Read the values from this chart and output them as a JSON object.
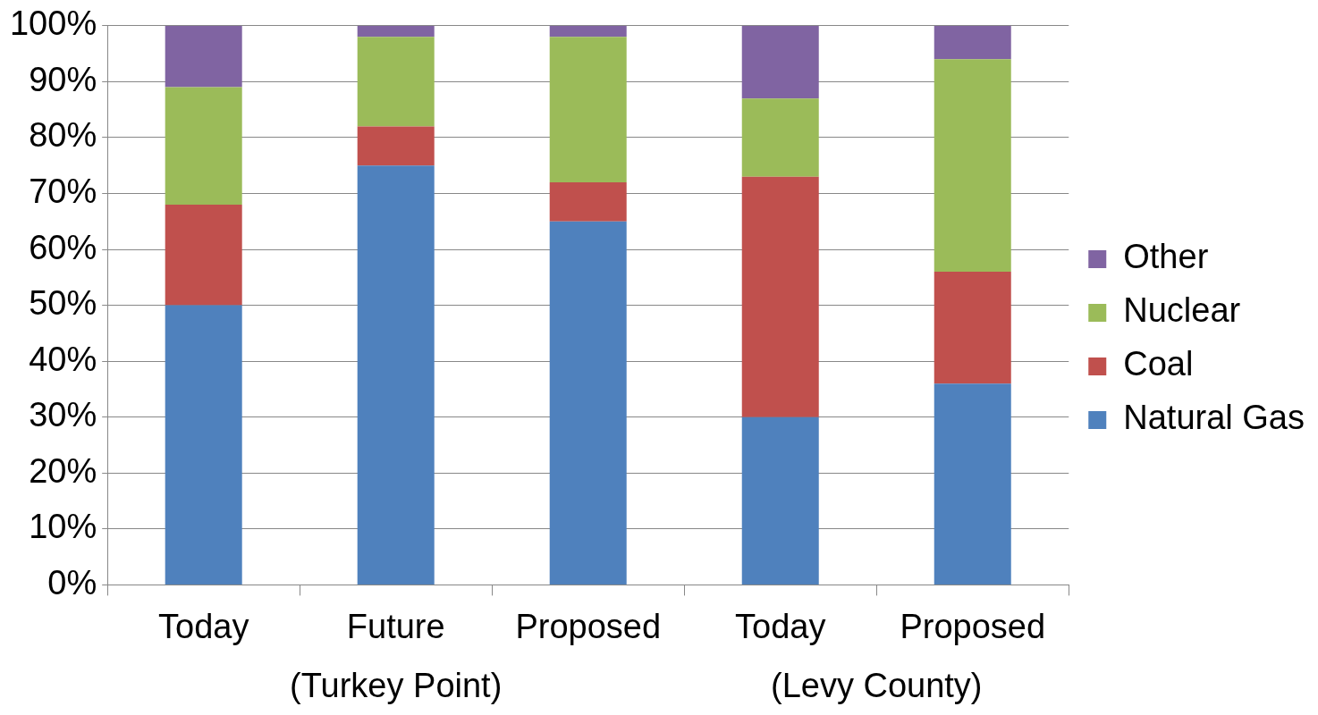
{
  "chart_data": {
    "type": "bar",
    "stacked": true,
    "categories": [
      "Today",
      "Future",
      "Proposed",
      "Today",
      "Proposed"
    ],
    "series": [
      {
        "name": "Natural Gas",
        "color": "#4f81bd",
        "values": [
          50,
          75,
          65,
          30,
          36
        ]
      },
      {
        "name": "Coal",
        "color": "#c0504d",
        "values": [
          18,
          7,
          7,
          43,
          20
        ]
      },
      {
        "name": "Nuclear",
        "color": "#9bbb59",
        "values": [
          21,
          16,
          26,
          14,
          38
        ]
      },
      {
        "name": "Other",
        "color": "#8064a2",
        "values": [
          11,
          2,
          2,
          13,
          6
        ]
      }
    ],
    "ylim": [
      0,
      100
    ],
    "yticks": [
      {
        "value": 0,
        "label": "0%"
      },
      {
        "value": 10,
        "label": "10%"
      },
      {
        "value": 20,
        "label": "20%"
      },
      {
        "value": 30,
        "label": "30%"
      },
      {
        "value": 40,
        "label": "40%"
      },
      {
        "value": 50,
        "label": "50%"
      },
      {
        "value": 60,
        "label": "60%"
      },
      {
        "value": 70,
        "label": "70%"
      },
      {
        "value": 80,
        "label": "80%"
      },
      {
        "value": 90,
        "label": "90%"
      },
      {
        "value": 100,
        "label": "100%"
      }
    ],
    "grid": "y",
    "legend": "right",
    "annotations": [
      "(Turkey Point)",
      "(Levy County)"
    ]
  }
}
